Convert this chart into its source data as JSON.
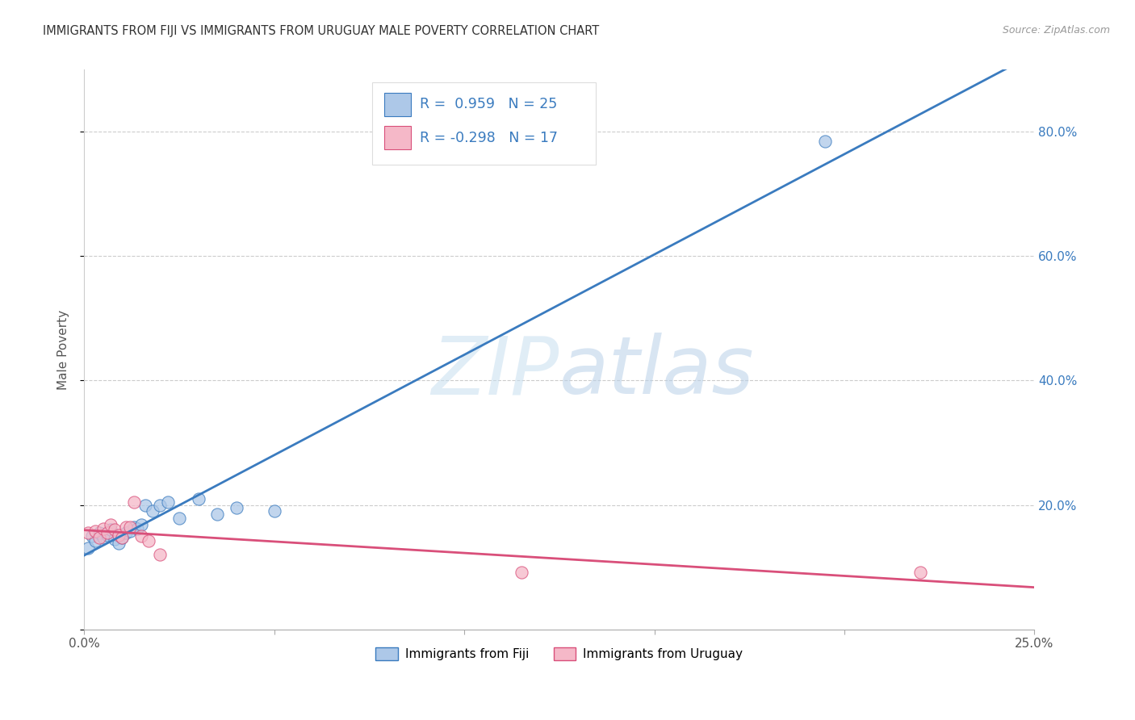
{
  "title": "IMMIGRANTS FROM FIJI VS IMMIGRANTS FROM URUGUAY MALE POVERTY CORRELATION CHART",
  "source": "Source: ZipAtlas.com",
  "ylabel": "Male Poverty",
  "xlim": [
    0.0,
    0.25
  ],
  "ylim": [
    0.0,
    0.9
  ],
  "ytick_vals": [
    0.0,
    0.2,
    0.4,
    0.6,
    0.8
  ],
  "xtick_vals": [
    0.0,
    0.05,
    0.1,
    0.15,
    0.2,
    0.25
  ],
  "fiji_color": "#adc8e8",
  "fiji_line_color": "#3a7bbf",
  "uruguay_color": "#f5b8c8",
  "uruguay_line_color": "#d94f7a",
  "fiji_R": 0.959,
  "fiji_N": 25,
  "uruguay_R": -0.298,
  "uruguay_N": 17,
  "fiji_points_x": [
    0.001,
    0.002,
    0.003,
    0.004,
    0.005,
    0.006,
    0.007,
    0.008,
    0.009,
    0.01,
    0.011,
    0.012,
    0.013,
    0.014,
    0.015,
    0.016,
    0.018,
    0.02,
    0.022,
    0.025,
    0.03,
    0.035,
    0.04,
    0.05,
    0.195
  ],
  "fiji_points_y": [
    0.13,
    0.15,
    0.142,
    0.155,
    0.148,
    0.152,
    0.16,
    0.145,
    0.138,
    0.148,
    0.155,
    0.158,
    0.165,
    0.162,
    0.168,
    0.2,
    0.19,
    0.2,
    0.205,
    0.178,
    0.21,
    0.185,
    0.195,
    0.19,
    0.785
  ],
  "uruguay_points_x": [
    0.001,
    0.003,
    0.004,
    0.005,
    0.006,
    0.007,
    0.008,
    0.009,
    0.01,
    0.011,
    0.012,
    0.013,
    0.015,
    0.017,
    0.02,
    0.115,
    0.22
  ],
  "uruguay_points_y": [
    0.155,
    0.158,
    0.148,
    0.162,
    0.155,
    0.168,
    0.16,
    0.152,
    0.148,
    0.165,
    0.165,
    0.205,
    0.15,
    0.142,
    0.12,
    0.092,
    0.092
  ],
  "background_color": "#ffffff",
  "grid_color": "#cccccc",
  "watermark_zip": "ZIP",
  "watermark_atlas": "atlas",
  "legend_fiji": "Immigrants from Fiji",
  "legend_uruguay": "Immigrants from Uruguay"
}
